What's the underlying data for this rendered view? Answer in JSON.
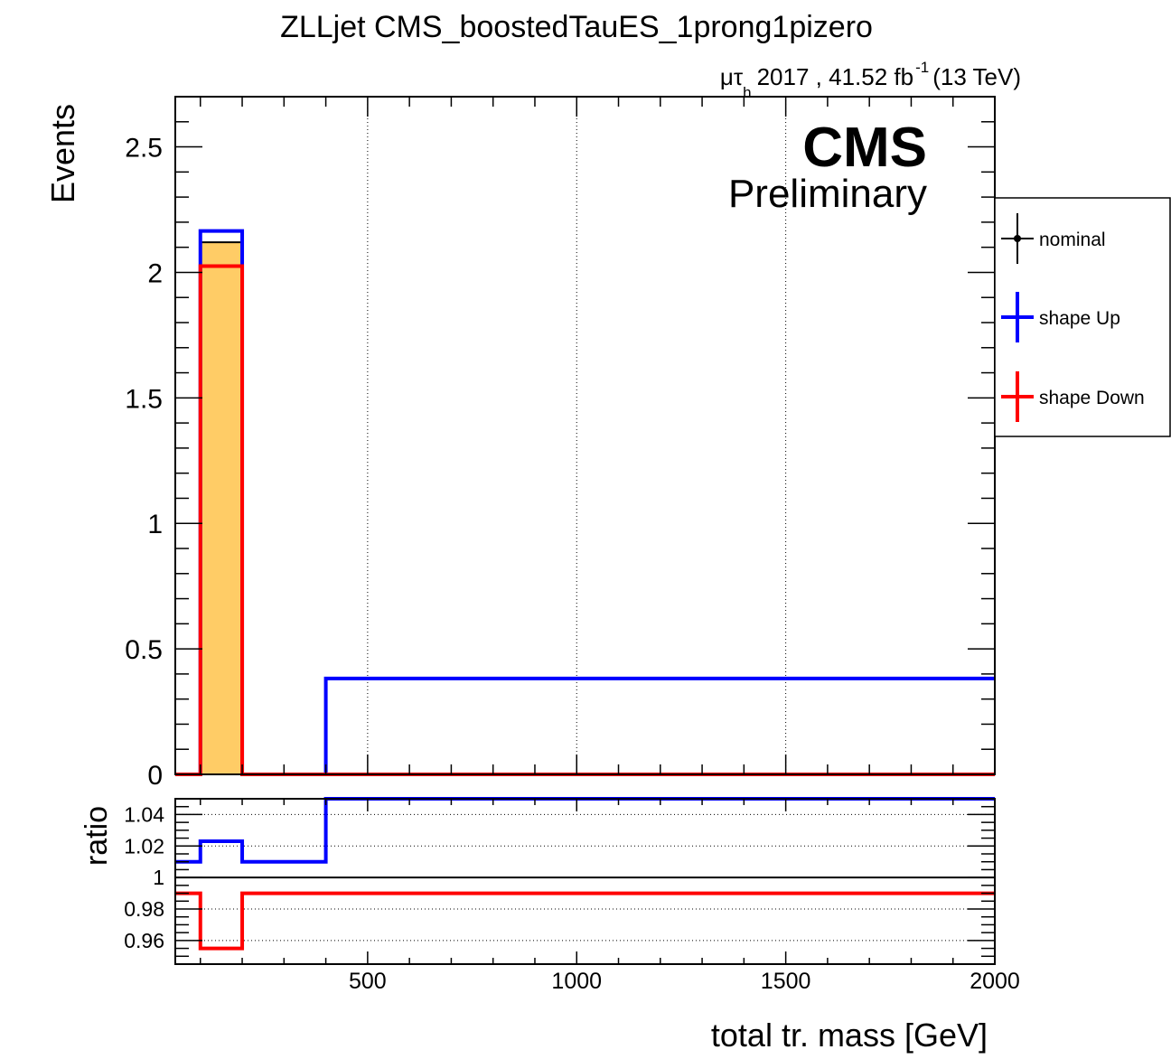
{
  "chart_data": {
    "type": "line",
    "title": "ZLLjet CMS_boostedTauES_1prong1pizero",
    "subtitle": {
      "mu": "μτ",
      "sub": "h",
      "main": "2017 , 41.52 fb",
      "sup": "-1",
      "energy": "(13 TeV)"
    },
    "cms_label": "CMS",
    "cms_sublabel": "Preliminary",
    "xlabel": "total tr. mass [GeV]",
    "ylabel": "Events",
    "ratio_ylabel": "ratio",
    "xlim": [
      40,
      2000
    ],
    "ylim": [
      0,
      2.7
    ],
    "ratio_ylim": [
      0.945,
      1.05
    ],
    "x_ticks": [
      "500",
      "1000",
      "1500",
      "2000"
    ],
    "x_tick_values": [
      500,
      1000,
      1500,
      2000
    ],
    "y_ticks": [
      "0",
      "0.5",
      "1",
      "1.5",
      "2",
      "2.5"
    ],
    "y_tick_values": [
      0,
      0.5,
      1,
      1.5,
      2,
      2.5
    ],
    "ratio_y_ticks": [
      "0.96",
      "0.98",
      "1",
      "1.02",
      "1.04"
    ],
    "ratio_y_tick_values": [
      0.96,
      0.98,
      1.0,
      1.02,
      1.04
    ],
    "grid": "vertical dotted (main), horizontal dotted (ratio)",
    "legend_position": "right, outside plot",
    "bin_edges": [
      40,
      100,
      200,
      400,
      2000
    ],
    "series": [
      {
        "name": "nominal",
        "color": "#000000",
        "fill": "#ffcc66",
        "values": [
          0,
          2.12,
          0,
          0
        ]
      },
      {
        "name": "shape Up",
        "color": "#0000ff",
        "values": [
          0,
          2.165,
          0,
          0.382
        ]
      },
      {
        "name": "shape Down",
        "color": "#ff0000",
        "values": [
          0,
          2.025,
          0,
          0
        ]
      }
    ],
    "ratio_series": [
      {
        "name": "shape Up",
        "color": "#0000ff",
        "values": [
          1.01,
          1.023,
          1.01,
          1.06
        ]
      },
      {
        "name": "shape Down",
        "color": "#ff0000",
        "values": [
          0.99,
          0.955,
          0.99,
          0.99
        ]
      }
    ],
    "ratio_reference": 1.0
  }
}
